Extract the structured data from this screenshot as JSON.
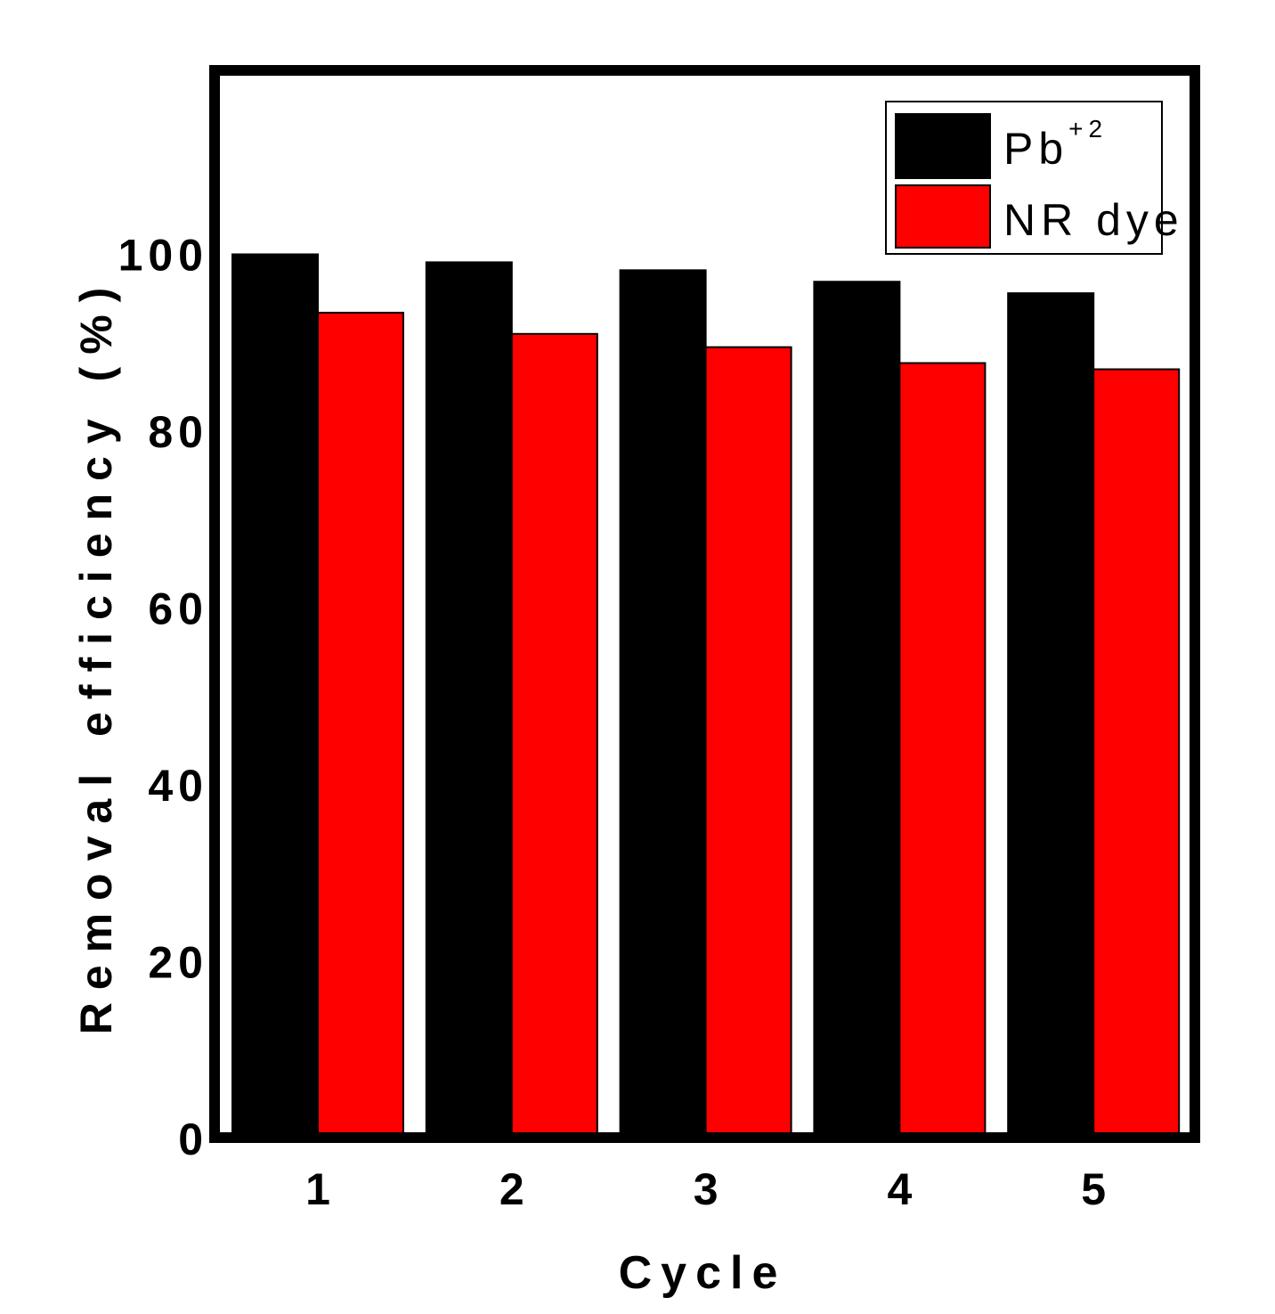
{
  "chart_data": {
    "type": "bar",
    "categories": [
      "1",
      "2",
      "3",
      "4",
      "5"
    ],
    "series": [
      {
        "name": "Pb",
        "name_superscript": "+2",
        "color": "#000000",
        "values": [
          99.8,
          98.9,
          98.0,
          96.7,
          95.4
        ]
      },
      {
        "name": "NR dye",
        "color": "#ff0000",
        "values": [
          93.2,
          90.8,
          89.3,
          87.5,
          86.8
        ]
      }
    ],
    "xlabel": "Cycle",
    "ylabel": "Removal efficiency (%)",
    "ylim": [
      0,
      120
    ],
    "yticks": [
      0,
      20,
      40,
      60,
      80,
      100
    ],
    "grid": false,
    "legend_position": "top-right"
  }
}
